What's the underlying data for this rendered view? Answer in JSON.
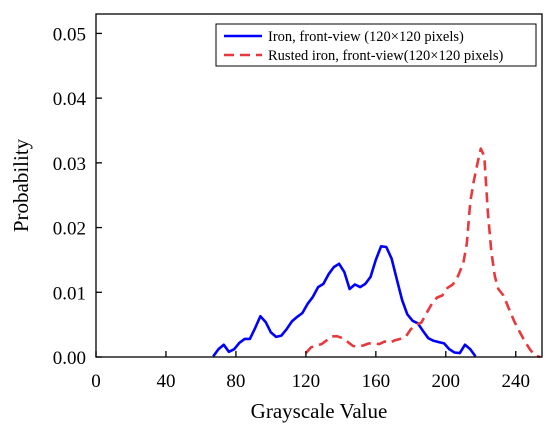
{
  "chart_data": {
    "type": "line",
    "xlabel": "Grayscale Value",
    "ylabel": "Probability",
    "xlim": [
      0,
      255
    ],
    "ylim": [
      0,
      0.053
    ],
    "xticks": [
      "0",
      "40",
      "80",
      "120",
      "160",
      "200",
      "240"
    ],
    "xtick_values": [
      0,
      40,
      80,
      120,
      160,
      200,
      240
    ],
    "yticks": [
      "0.00",
      "0.01",
      "0.02",
      "0.03",
      "0.04",
      "0.05"
    ],
    "ytick_values": [
      0,
      0.01,
      0.02,
      0.03,
      0.04,
      0.05
    ],
    "grid": false,
    "legend_position": "top-right",
    "series": [
      {
        "name": "Iron, front-view (120×120 pixels)",
        "color": "#0000ff",
        "style": "solid",
        "x": [
          67,
          70,
          73,
          76,
          79,
          82,
          85,
          88,
          91,
          94,
          97,
          100,
          103,
          106,
          109,
          112,
          115,
          118,
          121,
          124,
          127,
          130,
          133,
          136,
          139,
          142,
          145,
          148,
          151,
          154,
          157,
          160,
          163,
          166,
          169,
          172,
          175,
          178,
          181,
          184,
          187,
          190,
          193,
          196,
          199,
          202,
          205,
          208,
          211,
          214,
          217
        ],
        "y": [
          0.0001,
          0.0012,
          0.0019,
          0.0008,
          0.0012,
          0.0022,
          0.0028,
          0.0028,
          0.0045,
          0.0063,
          0.0054,
          0.0038,
          0.0031,
          0.0033,
          0.0043,
          0.0055,
          0.0062,
          0.0068,
          0.0082,
          0.0093,
          0.0108,
          0.0113,
          0.0128,
          0.0139,
          0.0144,
          0.0131,
          0.0105,
          0.0112,
          0.0108,
          0.0113,
          0.0124,
          0.015,
          0.0171,
          0.017,
          0.0152,
          0.012,
          0.0088,
          0.0066,
          0.0056,
          0.0052,
          0.004,
          0.0029,
          0.0025,
          0.0023,
          0.0021,
          0.0012,
          0.0007,
          0.0006,
          0.0019,
          0.0012,
          0.0001
        ]
      },
      {
        "name": "Rusted iron, front-view(120×120 pixels)",
        "color": "#e8383d",
        "style": "dashed",
        "x": [
          120,
          123,
          126,
          129,
          132,
          135,
          138,
          141,
          144,
          147,
          150,
          153,
          156,
          159,
          162,
          165,
          168,
          171,
          174,
          177,
          180,
          183,
          186,
          189,
          192,
          195,
          198,
          201,
          204,
          207,
          210,
          212,
          214,
          216,
          218,
          220,
          222,
          224,
          226,
          228,
          230,
          233,
          236,
          239,
          242,
          245,
          248,
          251,
          254
        ],
        "y": [
          0.0006,
          0.0015,
          0.0018,
          0.002,
          0.0026,
          0.0032,
          0.0032,
          0.0029,
          0.0023,
          0.0017,
          0.0016,
          0.0018,
          0.0021,
          0.0021,
          0.002,
          0.0024,
          0.0022,
          0.0026,
          0.0028,
          0.0031,
          0.0043,
          0.005,
          0.0053,
          0.0068,
          0.0082,
          0.0092,
          0.0095,
          0.0107,
          0.0112,
          0.0125,
          0.0145,
          0.0175,
          0.024,
          0.0272,
          0.0298,
          0.0322,
          0.031,
          0.0225,
          0.0163,
          0.0125,
          0.0105,
          0.0095,
          0.0075,
          0.0056,
          0.004,
          0.0025,
          0.0012,
          0.0002,
          0.0
        ]
      }
    ]
  }
}
